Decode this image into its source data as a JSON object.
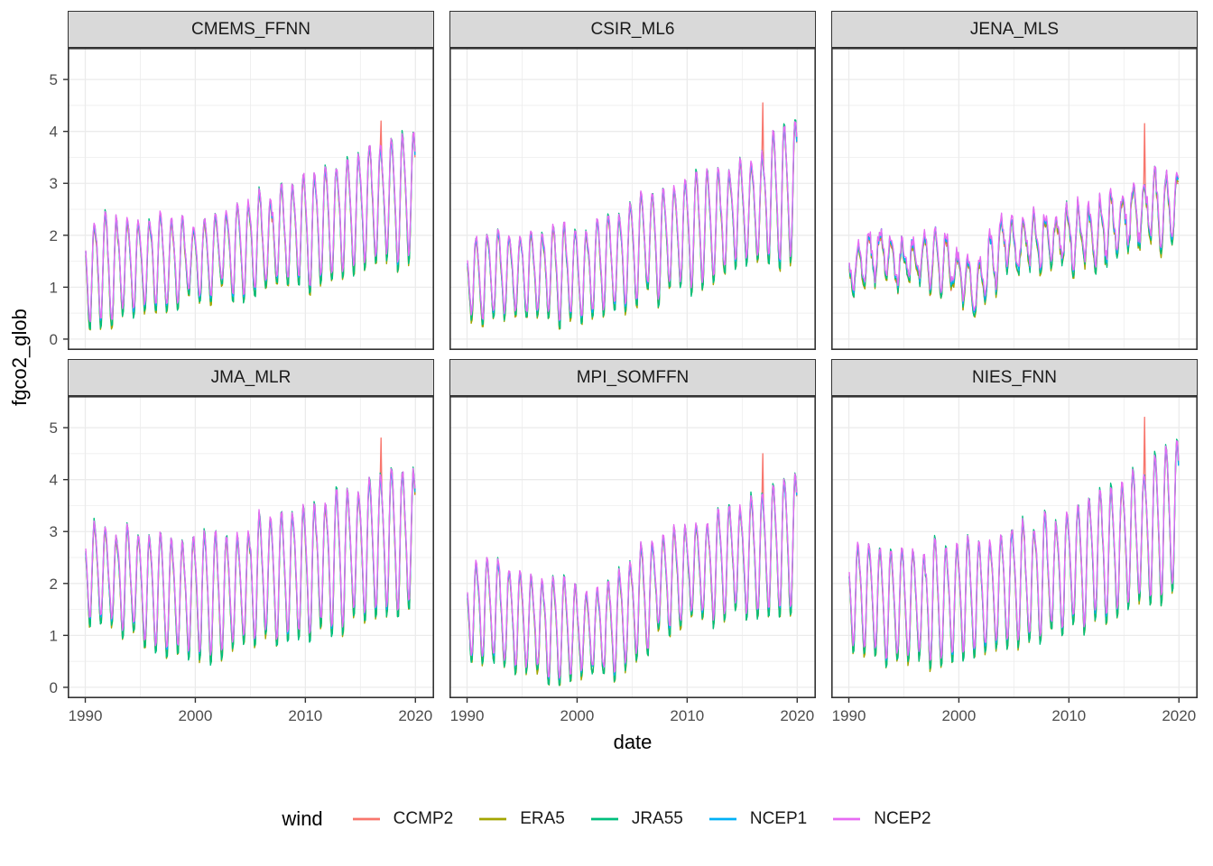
{
  "chart_data": {
    "type": "line",
    "title": "",
    "xlabel": "date",
    "ylabel": "fgco2_glob",
    "x_domain": [
      1988.4,
      2021.7
    ],
    "y_domain": [
      -0.21,
      5.61
    ],
    "x_ticks": [
      1990,
      2000,
      2010,
      2020
    ],
    "x_minor_ticks": [
      1995,
      2005,
      2015
    ],
    "y_ticks": [
      0,
      1,
      2,
      3,
      4,
      5
    ],
    "y_minor_ticks": [
      0.5,
      1.5,
      2.5,
      3.5,
      4.5
    ],
    "grid": true,
    "grid_color": "#ebebeb",
    "panel_border_color": "#333333",
    "strip_background": "#d9d9d9",
    "sampling": {
      "start_year": 1990,
      "end_year": 2019.875,
      "interval_months": 1
    },
    "seasonal_model": {
      "phase": 0.62,
      "harmonic2_weight": 0.18,
      "harmonic2_phase": 0.4
    },
    "legend": {
      "title": "wind",
      "position": "bottom",
      "entries": [
        {
          "name": "CCMP2",
          "color": "#F8766D",
          "amp_scale": 1.03,
          "offset": -0.05
        },
        {
          "name": "ERA5",
          "color": "#A3A500",
          "amp_scale": 1.08,
          "offset": -0.05
        },
        {
          "name": "JRA55",
          "color": "#00BF7D",
          "amp_scale": 1.1,
          "offset": -0.01
        },
        {
          "name": "NCEP1",
          "color": "#00B0F6",
          "amp_scale": 0.99,
          "offset": 0.02
        },
        {
          "name": "NCEP2",
          "color": "#E76BF3",
          "amp_scale": 1.02,
          "offset": 0.06
        }
      ]
    },
    "ccmp2_spike_year": 2016.87,
    "facets": [
      {
        "label": "CMEMS_FFNN",
        "row": 0,
        "col": 0,
        "noise": 0.05,
        "ccmp2_spike": 4.2,
        "keyframes": [
          [
            1990,
            1.35,
            0.95
          ],
          [
            1993,
            1.4,
            0.9
          ],
          [
            1996,
            1.5,
            0.8
          ],
          [
            2000,
            1.55,
            0.65
          ],
          [
            2004,
            1.8,
            0.75
          ],
          [
            2008,
            2.0,
            0.9
          ],
          [
            2012,
            2.25,
            1.0
          ],
          [
            2016,
            2.6,
            1.05
          ],
          [
            2019.9,
            2.85,
            1.25
          ]
        ]
      },
      {
        "label": "CSIR_ML6",
        "row": 0,
        "col": 1,
        "noise": 0.05,
        "ccmp2_spike": 4.55,
        "keyframes": [
          [
            1990,
            1.2,
            0.68
          ],
          [
            1994,
            1.3,
            0.72
          ],
          [
            1998,
            1.3,
            0.8
          ],
          [
            2001,
            1.3,
            0.88
          ],
          [
            2005,
            1.75,
            0.85
          ],
          [
            2009,
            2.0,
            0.9
          ],
          [
            2013,
            2.3,
            0.95
          ],
          [
            2017,
            2.65,
            0.95
          ],
          [
            2019.9,
            3.05,
            1.25
          ]
        ]
      },
      {
        "label": "JENA_MLS",
        "row": 0,
        "col": 2,
        "noise": 0.16,
        "ccmp2_spike": 4.15,
        "keyframes": [
          [
            1990,
            1.15,
            0.35
          ],
          [
            1992.5,
            1.75,
            0.5
          ],
          [
            1994,
            1.45,
            0.4
          ],
          [
            1997,
            1.55,
            0.45
          ],
          [
            1999,
            1.4,
            0.45
          ],
          [
            2001.5,
            1.0,
            0.45
          ],
          [
            2004,
            1.8,
            0.5
          ],
          [
            2007,
            1.9,
            0.5
          ],
          [
            2010,
            1.95,
            0.55
          ],
          [
            2013,
            2.1,
            0.5
          ],
          [
            2016,
            2.35,
            0.55
          ],
          [
            2019.9,
            2.6,
            0.6
          ]
        ]
      },
      {
        "label": "JMA_MLR",
        "row": 1,
        "col": 0,
        "noise": 0.05,
        "ccmp2_spike": 4.8,
        "keyframes": [
          [
            1990,
            2.3,
            0.8
          ],
          [
            1994,
            2.05,
            0.9
          ],
          [
            1998,
            1.85,
            1.0
          ],
          [
            2001,
            1.75,
            1.15
          ],
          [
            2004,
            2.0,
            1.05
          ],
          [
            2008,
            2.2,
            1.1
          ],
          [
            2012,
            2.4,
            1.15
          ],
          [
            2016,
            2.7,
            1.1
          ],
          [
            2019.9,
            3.0,
            1.3
          ]
        ]
      },
      {
        "label": "MPI_SOMFFN",
        "row": 1,
        "col": 1,
        "noise": 0.06,
        "ccmp2_spike": 4.5,
        "keyframes": [
          [
            1990,
            1.5,
            0.85
          ],
          [
            1994,
            1.45,
            0.9
          ],
          [
            1998,
            1.2,
            0.85
          ],
          [
            2001,
            1.05,
            0.8
          ],
          [
            2004,
            1.35,
            0.9
          ],
          [
            2008,
            2.1,
            0.85
          ],
          [
            2011,
            2.35,
            0.9
          ],
          [
            2015,
            2.5,
            0.9
          ],
          [
            2019.9,
            2.85,
            1.25
          ]
        ]
      },
      {
        "label": "NIES_FNN",
        "row": 1,
        "col": 2,
        "noise": 0.05,
        "ccmp2_spike": 5.2,
        "keyframes": [
          [
            1990,
            1.85,
            0.95
          ],
          [
            1994,
            1.65,
            0.95
          ],
          [
            1998,
            1.7,
            1.0
          ],
          [
            2002,
            1.8,
            1.0
          ],
          [
            2006,
            2.05,
            1.0
          ],
          [
            2010,
            2.3,
            1.0
          ],
          [
            2014,
            2.7,
            1.05
          ],
          [
            2017,
            3.0,
            1.1
          ],
          [
            2019.9,
            3.5,
            1.3
          ]
        ]
      }
    ]
  }
}
